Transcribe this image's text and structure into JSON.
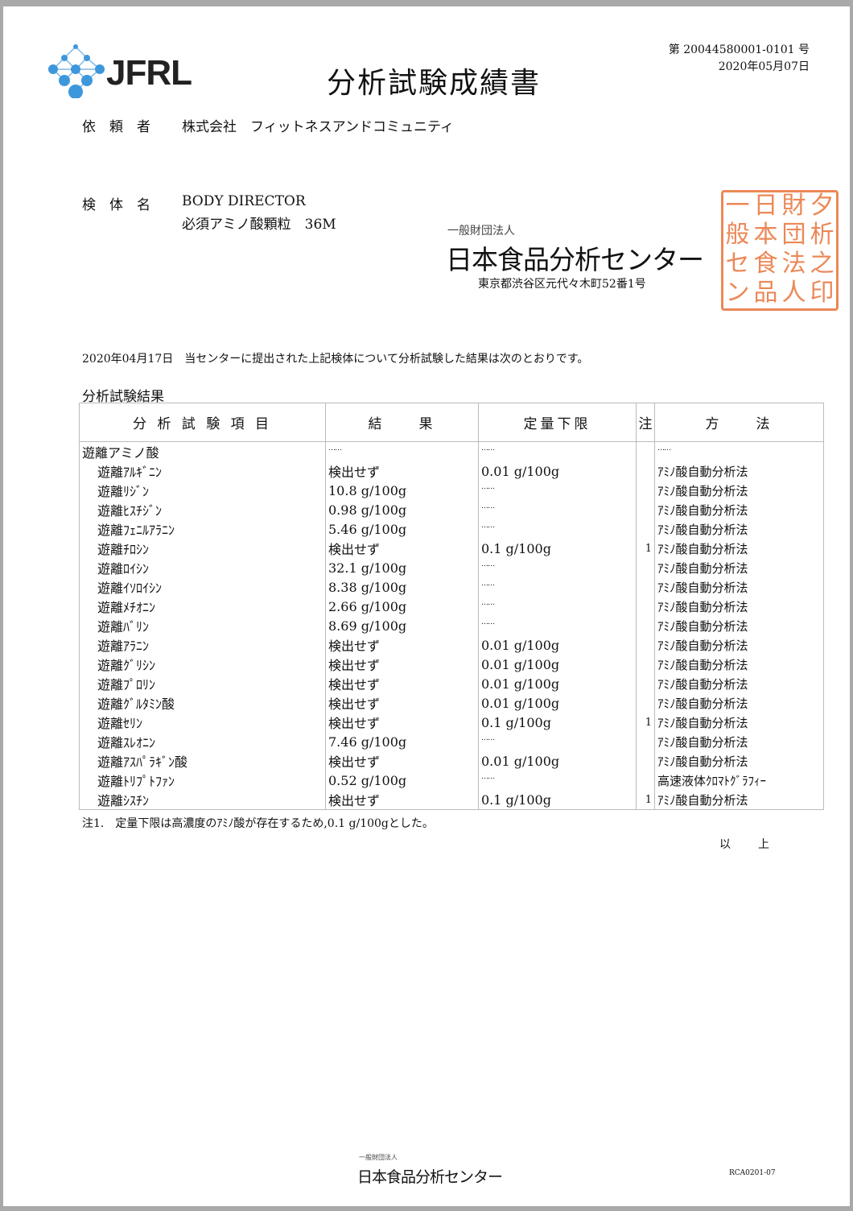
{
  "header": {
    "logo": "JFRL",
    "title": "分析試験成績書",
    "report_number": "第 20044580001-0101 号",
    "report_date": "2020年05月07日"
  },
  "client": {
    "label": "依　頼　者",
    "value": "株式会社　フィットネスアンドコミュニティ"
  },
  "sample": {
    "label": "検　体　名",
    "line1": "BODY DIRECTOR",
    "line2": "必須アミノ酸顆粒　36M"
  },
  "issuer": {
    "prefix": "一般財団法人",
    "name": "日本食品分析センター",
    "address": "東京都渋谷区元代々木町52番1号",
    "stamp_text": "一般財団法人日本食品分析センター之印"
  },
  "intro": "2020年04月17日　当センターに提出された上記検体について分析試験した結果は次のとおりです。",
  "results_title": "分析試験結果",
  "table": {
    "headers": [
      "分 析 試 験 項 目",
      "結　　果",
      "定量下限",
      "注",
      "方　　法"
    ],
    "category": {
      "item": "遊離アミノ酸",
      "result": "……",
      "limit": "……",
      "method": "……"
    },
    "rows": [
      {
        "item": "遊離ｱﾙｷﾞﾆﾝ",
        "result": "検出せず",
        "limit": "0.01 g/100g",
        "note": "",
        "method": "ｱﾐﾉ酸自動分析法"
      },
      {
        "item": "遊離ﾘｼﾞﾝ",
        "result": "10.8 g/100g",
        "limit": "……",
        "note": "",
        "method": "ｱﾐﾉ酸自動分析法"
      },
      {
        "item": "遊離ﾋｽﾁｼﾞﾝ",
        "result": "0.98 g/100g",
        "limit": "……",
        "note": "",
        "method": "ｱﾐﾉ酸自動分析法"
      },
      {
        "item": "遊離ﾌｪﾆﾙｱﾗﾆﾝ",
        "result": "5.46 g/100g",
        "limit": "……",
        "note": "",
        "method": "ｱﾐﾉ酸自動分析法"
      },
      {
        "item": "遊離ﾁﾛｼﾝ",
        "result": "検出せず",
        "limit": "0.1 g/100g",
        "note": "1",
        "method": "ｱﾐﾉ酸自動分析法"
      },
      {
        "item": "遊離ﾛｲｼﾝ",
        "result": "32.1 g/100g",
        "limit": "……",
        "note": "",
        "method": "ｱﾐﾉ酸自動分析法"
      },
      {
        "item": "遊離ｲｿﾛｲｼﾝ",
        "result": "8.38 g/100g",
        "limit": "……",
        "note": "",
        "method": "ｱﾐﾉ酸自動分析法"
      },
      {
        "item": "遊離ﾒﾁｵﾆﾝ",
        "result": "2.66 g/100g",
        "limit": "……",
        "note": "",
        "method": "ｱﾐﾉ酸自動分析法"
      },
      {
        "item": "遊離ﾊﾞﾘﾝ",
        "result": "8.69 g/100g",
        "limit": "……",
        "note": "",
        "method": "ｱﾐﾉ酸自動分析法"
      },
      {
        "item": "遊離ｱﾗﾆﾝ",
        "result": "検出せず",
        "limit": "0.01 g/100g",
        "note": "",
        "method": "ｱﾐﾉ酸自動分析法"
      },
      {
        "item": "遊離ｸﾞﾘｼﾝ",
        "result": "検出せず",
        "limit": "0.01 g/100g",
        "note": "",
        "method": "ｱﾐﾉ酸自動分析法"
      },
      {
        "item": "遊離ﾌﾟﾛﾘﾝ",
        "result": "検出せず",
        "limit": "0.01 g/100g",
        "note": "",
        "method": "ｱﾐﾉ酸自動分析法"
      },
      {
        "item": "遊離ｸﾞﾙﾀﾐﾝ酸",
        "result": "検出せず",
        "limit": "0.01 g/100g",
        "note": "",
        "method": "ｱﾐﾉ酸自動分析法"
      },
      {
        "item": "遊離ｾﾘﾝ",
        "result": "検出せず",
        "limit": "0.1 g/100g",
        "note": "1",
        "method": "ｱﾐﾉ酸自動分析法"
      },
      {
        "item": "遊離ｽﾚｵﾆﾝ",
        "result": "7.46 g/100g",
        "limit": "……",
        "note": "",
        "method": "ｱﾐﾉ酸自動分析法"
      },
      {
        "item": "遊離ｱｽﾊﾟﾗｷﾞﾝ酸",
        "result": "検出せず",
        "limit": "0.01 g/100g",
        "note": "",
        "method": "ｱﾐﾉ酸自動分析法"
      },
      {
        "item": "遊離ﾄﾘﾌﾟﾄﾌｧﾝ",
        "result": "0.52 g/100g",
        "limit": "……",
        "note": "",
        "method": "高速液体ｸﾛﾏﾄｸﾞﾗﾌｨｰ"
      },
      {
        "item": "遊離ｼｽﾁﾝ",
        "result": "検出せず",
        "limit": "0.1 g/100g",
        "note": "1",
        "method": "ｱﾐﾉ酸自動分析法"
      }
    ]
  },
  "footnote": "注1.　定量下限は高濃度のｱﾐﾉ酸が存在するため,0.1 g/100gとした。",
  "closing": "以　　上",
  "footer": {
    "prefix": "一般財団法人",
    "name": "日本食品分析センター",
    "code": "RCA0201-07"
  },
  "colors": {
    "stamp": "#e8743a",
    "logo": "#3d97db"
  }
}
